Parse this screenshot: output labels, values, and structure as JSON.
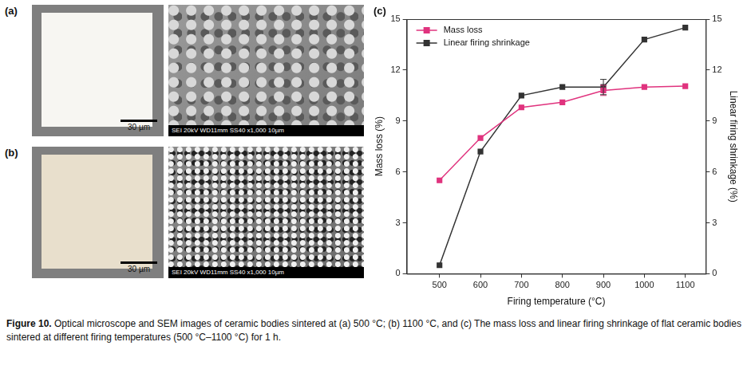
{
  "panels": [
    {
      "label": "(a)",
      "scale_bar": "30 µm",
      "sem_info": "SEI 20kV WD11mm SS40 x1,000 10µm"
    },
    {
      "label": "(b)",
      "scale_bar": "30 µm",
      "sem_info": "SEI 20kV WD11mm SS40 x1,000 10µm"
    }
  ],
  "caption": {
    "label": "Figure 10.",
    "text": "Optical microscope and SEM images of ceramic bodies sintered at (a) 500 °C; (b) 1100 °C, and (c) The mass loss and linear firing shrinkage of flat ceramic bodies sintered at different firing temperatures (500 °C–1100 °C) for 1 h."
  },
  "chart_data": {
    "type": "line",
    "panel": "(c)",
    "x": [
      500,
      600,
      700,
      800,
      900,
      1000,
      1100
    ],
    "xlabel": "Firing temperature (°C)",
    "ylabel": "Mass loss (%)",
    "y2label": "Linear firing shrinkage (%)",
    "xlim": [
      420,
      1150
    ],
    "xticks": [
      500,
      600,
      700,
      800,
      900,
      1000,
      1100
    ],
    "ylim": [
      0,
      15
    ],
    "yticks": [
      0,
      3,
      6,
      9,
      12,
      15
    ],
    "y2lim": [
      0,
      15
    ],
    "y2ticks": [
      0,
      3,
      6,
      9,
      12,
      15
    ],
    "grid": false,
    "legend": "top-left",
    "marker": "square",
    "series": [
      {
        "name": "Mass loss",
        "color": "#e0337e",
        "values": [
          5.5,
          8.0,
          9.8,
          10.1,
          10.8,
          11.0,
          11.05
        ],
        "errors": [
          0,
          0,
          0,
          0,
          0.3,
          0,
          0
        ]
      },
      {
        "name": "Linear firing shrinkage",
        "color": "#333333",
        "axis": "y2",
        "values": [
          0.5,
          7.2,
          10.5,
          11.0,
          11.0,
          13.8,
          14.5
        ],
        "errors": [
          0,
          0,
          0,
          0,
          0.45,
          0,
          0
        ]
      }
    ]
  }
}
